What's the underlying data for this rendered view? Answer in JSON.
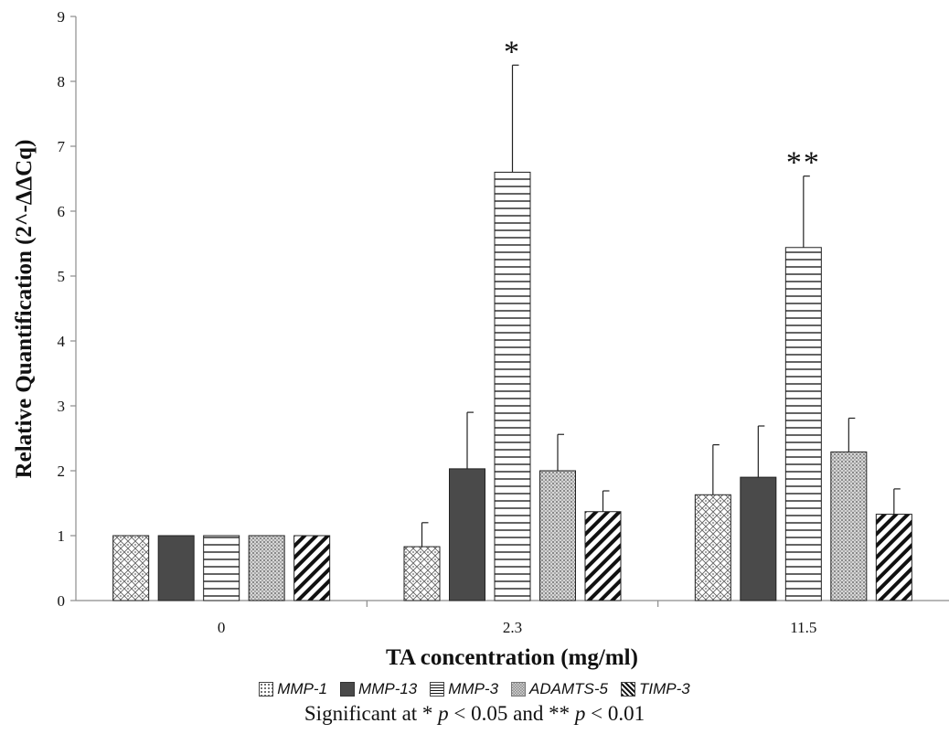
{
  "chart_data": {
    "type": "bar",
    "xlabel": "TA concentration (mg/ml)",
    "ylabel": "Relative Quantification (2^-ΔΔCq)",
    "ylim": [
      0,
      9
    ],
    "yticks": [
      0,
      1,
      2,
      3,
      4,
      5,
      6,
      7,
      8,
      9
    ],
    "grid": false,
    "legend_position": "bottom",
    "categories": [
      "0",
      "2.3",
      "11.5"
    ],
    "series": [
      {
        "name": "MMP-1",
        "pattern": "dots",
        "values": [
          1.0,
          0.83,
          1.63
        ],
        "errors": [
          0.0,
          0.37,
          0.77
        ]
      },
      {
        "name": "MMP-13",
        "pattern": "solid",
        "values": [
          1.0,
          2.03,
          1.9
        ],
        "errors": [
          0.0,
          0.87,
          0.79
        ]
      },
      {
        "name": "MMP-3",
        "pattern": "horizontal-lines",
        "values": [
          1.0,
          6.6,
          5.44
        ],
        "errors": [
          0.0,
          1.65,
          1.1
        ]
      },
      {
        "name": "ADAMTS-5",
        "pattern": "fine-grid",
        "values": [
          1.0,
          2.0,
          2.29
        ],
        "errors": [
          0.0,
          0.56,
          0.52
        ]
      },
      {
        "name": "TIMP-3",
        "pattern": "diagonal-stripes",
        "values": [
          1.0,
          1.37,
          1.33
        ],
        "errors": [
          0.0,
          0.32,
          0.39
        ]
      }
    ],
    "annotations": [
      {
        "text": "*",
        "series": "MMP-3",
        "category": "2.3"
      },
      {
        "text": "**",
        "series": "MMP-3",
        "category": "11.5"
      }
    ]
  },
  "footnote": {
    "prefix": "Significant at * ",
    "p1": "p",
    "mid": " < 0.05 and ** ",
    "p2": "p",
    "suffix": " < 0.01"
  },
  "colors": {
    "axis": "#8c8c8c",
    "dark_bar": "#4a4a4a",
    "outline": "#222222"
  }
}
